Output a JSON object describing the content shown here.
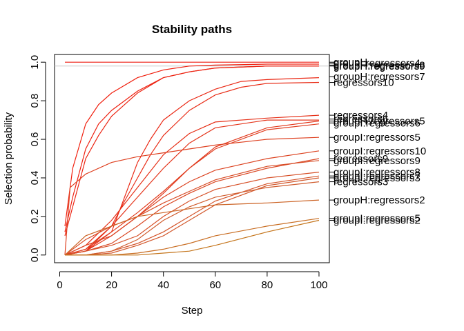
{
  "chart_data": {
    "type": "line",
    "title": "Stability paths",
    "xlabel": "Step",
    "ylabel": "Selection probability",
    "xlim": [
      -2,
      104
    ],
    "ylim": [
      -0.04,
      1.04
    ],
    "xticks": [
      0,
      20,
      40,
      60,
      80,
      100
    ],
    "yticks": [
      0.0,
      0.2,
      0.4,
      0.6,
      0.8,
      1.0
    ],
    "xtick_labels": [
      "0",
      "20",
      "40",
      "60",
      "80",
      "100"
    ],
    "ytick_labels": [
      "0.0",
      "0.2",
      "0.4",
      "0.6",
      "0.8",
      "1.0"
    ],
    "threshold_line": 0.98,
    "grid": false,
    "legend": "right-margin labels",
    "series": [
      {
        "name": "groupH",
        "color": "#ee1c10",
        "x": [
          2,
          10,
          20,
          40,
          60,
          80,
          100
        ],
        "y": [
          1.0,
          1.0,
          1.0,
          1.0,
          1.0,
          1.0,
          1.0
        ]
      },
      {
        "name": "groupI:regressors4",
        "color": "#f01d0c",
        "x": [
          2,
          5,
          10,
          15,
          20,
          30,
          40,
          50,
          60,
          80,
          100
        ],
        "y": [
          0.15,
          0.45,
          0.68,
          0.78,
          0.84,
          0.92,
          0.96,
          0.98,
          0.985,
          0.99,
          0.99
        ]
      },
      {
        "name": "groupH:regressors8",
        "color": "#ee2010",
        "x": [
          2,
          5,
          10,
          15,
          20,
          25,
          30,
          40,
          50,
          60,
          80,
          100
        ],
        "y": [
          0.12,
          0.3,
          0.55,
          0.68,
          0.75,
          0.8,
          0.85,
          0.92,
          0.95,
          0.97,
          0.98,
          0.98
        ]
      },
      {
        "name": "groupH:regressors9",
        "color": "#ec2412",
        "x": [
          2,
          5,
          10,
          15,
          20,
          25,
          30,
          40,
          50,
          60,
          80,
          100
        ],
        "y": [
          0.1,
          0.25,
          0.5,
          0.62,
          0.72,
          0.78,
          0.84,
          0.92,
          0.95,
          0.97,
          0.98,
          0.98
        ]
      },
      {
        "name": "groupH:regressors7",
        "color": "#ea2814",
        "x": [
          2,
          10,
          20,
          25,
          30,
          35,
          40,
          50,
          60,
          70,
          80,
          100
        ],
        "y": [
          0.0,
          0.02,
          0.12,
          0.3,
          0.48,
          0.6,
          0.7,
          0.8,
          0.86,
          0.9,
          0.91,
          0.92
        ]
      },
      {
        "name": "regressors10",
        "color": "#e82c16",
        "x": [
          2,
          10,
          20,
          25,
          30,
          35,
          40,
          50,
          60,
          70,
          80,
          100
        ],
        "y": [
          0.0,
          0.02,
          0.15,
          0.28,
          0.4,
          0.52,
          0.62,
          0.75,
          0.83,
          0.87,
          0.89,
          0.895
        ]
      },
      {
        "name": "regressors4",
        "color": "#e63018",
        "x": [
          2,
          10,
          20,
          30,
          40,
          50,
          60,
          80,
          100
        ],
        "y": [
          0.0,
          0.05,
          0.18,
          0.35,
          0.52,
          0.63,
          0.69,
          0.71,
          0.725
        ]
      },
      {
        "name": "regressors6",
        "color": "#e4341a",
        "x": [
          2,
          10,
          20,
          30,
          40,
          50,
          60,
          80,
          100
        ],
        "y": [
          0.0,
          0.03,
          0.15,
          0.3,
          0.45,
          0.58,
          0.66,
          0.7,
          0.7
        ]
      },
      {
        "name": "groupH:regressors5",
        "color": "#e2381c",
        "x": [
          2,
          10,
          20,
          30,
          40,
          50,
          60,
          80,
          100
        ],
        "y": [
          0.0,
          0.02,
          0.1,
          0.2,
          0.32,
          0.45,
          0.56,
          0.66,
          0.695
        ]
      },
      {
        "name": "groupI:regressors6",
        "color": "#e03c1e",
        "x": [
          2,
          10,
          20,
          30,
          40,
          50,
          60,
          80,
          100
        ],
        "y": [
          0.0,
          0.03,
          0.12,
          0.22,
          0.33,
          0.45,
          0.55,
          0.65,
          0.68
        ]
      },
      {
        "name": "groupI:regressors5",
        "color": "#de4020",
        "x": [
          2,
          4,
          10,
          20,
          30,
          40,
          50,
          60,
          80,
          100
        ],
        "y": [
          0.0,
          0.35,
          0.42,
          0.48,
          0.51,
          0.53,
          0.55,
          0.57,
          0.6,
          0.61
        ]
      },
      {
        "name": "groupI:regressors10",
        "color": "#dc4422",
        "x": [
          2,
          10,
          20,
          30,
          40,
          50,
          60,
          80,
          100
        ],
        "y": [
          0.0,
          0.05,
          0.1,
          0.2,
          0.3,
          0.38,
          0.44,
          0.5,
          0.54
        ]
      },
      {
        "name": "regressors9",
        "color": "#da4824",
        "x": [
          2,
          10,
          20,
          30,
          40,
          50,
          60,
          80,
          100
        ],
        "y": [
          0.0,
          0.02,
          0.06,
          0.15,
          0.25,
          0.32,
          0.38,
          0.45,
          0.5
        ]
      },
      {
        "name": "groupI:regressors9",
        "color": "#d84c26",
        "x": [
          2,
          10,
          20,
          30,
          40,
          50,
          60,
          80,
          100
        ],
        "y": [
          0.0,
          0.08,
          0.15,
          0.2,
          0.27,
          0.33,
          0.39,
          0.46,
          0.49
        ]
      },
      {
        "name": "groupI:regressors8",
        "color": "#d65028",
        "x": [
          2,
          10,
          20,
          30,
          40,
          50,
          60,
          80,
          100
        ],
        "y": [
          0.0,
          0.02,
          0.05,
          0.1,
          0.2,
          0.28,
          0.34,
          0.4,
          0.43
        ]
      },
      {
        "name": "groupI:regressors7",
        "color": "#d4542a",
        "x": [
          2,
          10,
          20,
          30,
          40,
          50,
          60,
          80,
          100
        ],
        "y": [
          0.0,
          0.0,
          0.02,
          0.06,
          0.12,
          0.2,
          0.28,
          0.37,
          0.41
        ]
      },
      {
        "name": "groupI:regressors3",
        "color": "#d2582c",
        "x": [
          2,
          10,
          20,
          30,
          40,
          50,
          60,
          80,
          100
        ],
        "y": [
          0.0,
          0.0,
          0.01,
          0.05,
          0.1,
          0.18,
          0.26,
          0.36,
          0.4
        ]
      },
      {
        "name": "regressors3",
        "color": "#d05c2e",
        "x": [
          2,
          10,
          20,
          30,
          40,
          50,
          60,
          80,
          100
        ],
        "y": [
          0.0,
          0.0,
          0.02,
          0.08,
          0.18,
          0.25,
          0.3,
          0.35,
          0.38
        ]
      },
      {
        "name": "groupH:regressors2",
        "color": "#cc6426",
        "x": [
          2,
          10,
          20,
          30,
          40,
          50,
          60,
          80,
          100
        ],
        "y": [
          0.0,
          0.1,
          0.15,
          0.2,
          0.22,
          0.24,
          0.26,
          0.27,
          0.285
        ]
      },
      {
        "name": "groupI:regressors5",
        "color": "#c86c20",
        "x": [
          2,
          10,
          20,
          30,
          40,
          50,
          60,
          80,
          100
        ],
        "y": [
          0.0,
          0.0,
          0.0,
          0.01,
          0.03,
          0.06,
          0.1,
          0.15,
          0.19
        ]
      },
      {
        "name": "groupI:regressors2",
        "color": "#c4741a",
        "x": [
          2,
          10,
          20,
          30,
          40,
          50,
          60,
          80,
          100
        ],
        "y": [
          0.0,
          0.0,
          0.0,
          0.0,
          0.01,
          0.02,
          0.05,
          0.12,
          0.18
        ]
      }
    ],
    "right_labels": [
      {
        "text": "groupH",
        "y": 1.0
      },
      {
        "text": "groupI:regressors4",
        "y": 0.995
      },
      {
        "text": "groupH:regressors8",
        "y": 0.985
      },
      {
        "text": "groupH:regressors9",
        "y": 0.98
      },
      {
        "text": "groupH:regressors7",
        "y": 0.925
      },
      {
        "text": "regressors10",
        "y": 0.895
      },
      {
        "text": "regressors4",
        "y": 0.725
      },
      {
        "text": "regressors6",
        "y": 0.705
      },
      {
        "text": "groupH:regressors5",
        "y": 0.695
      },
      {
        "text": "groupI:regressors6",
        "y": 0.685
      },
      {
        "text": "groupI:regressors5",
        "y": 0.61
      },
      {
        "text": "groupI:regressors10",
        "y": 0.54
      },
      {
        "text": "regressors9",
        "y": 0.5
      },
      {
        "text": "groupI:regressors9",
        "y": 0.49
      },
      {
        "text": "groupI:regressors8",
        "y": 0.43
      },
      {
        "text": "groupI:regressors7",
        "y": 0.41
      },
      {
        "text": "groupI:regressors3",
        "y": 0.4
      },
      {
        "text": "regressors3",
        "y": 0.38
      },
      {
        "text": "groupH:regressors2",
        "y": 0.285
      },
      {
        "text": "groupI:regressors5",
        "y": 0.19
      },
      {
        "text": "groupI:regressors2",
        "y": 0.18
      }
    ]
  }
}
